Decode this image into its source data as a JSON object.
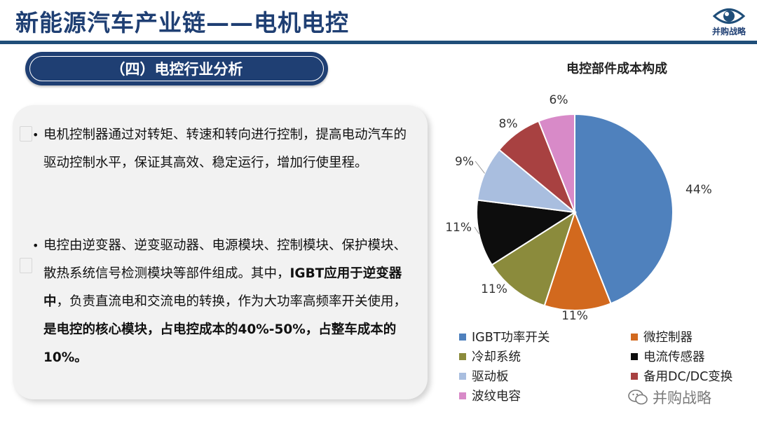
{
  "header": {
    "title": "新能源汽车产业链——电机电控",
    "logo_text": "并购战略"
  },
  "section": {
    "label": "（四）电控行业分析"
  },
  "body": {
    "para1": "电机控制器通过对转矩、转速和转向进行控制，提高电动汽车的驱动控制水平，保证其高效、稳定运行，增加行使里程。",
    "para2_a": "电控由逆变器、逆变驱动器、电源模块、控制模块、保护模块、散热系统信号检测模块等部件组成。其中，",
    "para2_b": "IGBT应用于逆变器中",
    "para2_c": "，负责直流电和交流电的转换，作为大功率高频率开关使用，",
    "para2_d": "是电控的核心模块，占电控成本的40%-50%，占整车成本的10%。"
  },
  "chart_data": {
    "type": "pie",
    "title": "电控部件成本构成",
    "categories": [
      "IGBT功率开关",
      "微控制器",
      "冷却系统",
      "电流传感器",
      "驱动板",
      "备用DC/DC变换",
      "波纹电容"
    ],
    "values": [
      44,
      11,
      11,
      11,
      9,
      8,
      6
    ],
    "labels": [
      "44%",
      "11%",
      "11%",
      "11%",
      "9%",
      "8%",
      "6%"
    ],
    "colors": [
      "#4f81bd",
      "#d2691e",
      "#8b8b3c",
      "#0d0d0d",
      "#a9bedf",
      "#a84141",
      "#d88ac8"
    ],
    "legend_position": "bottom"
  },
  "watermark": {
    "text": "并购战略"
  }
}
